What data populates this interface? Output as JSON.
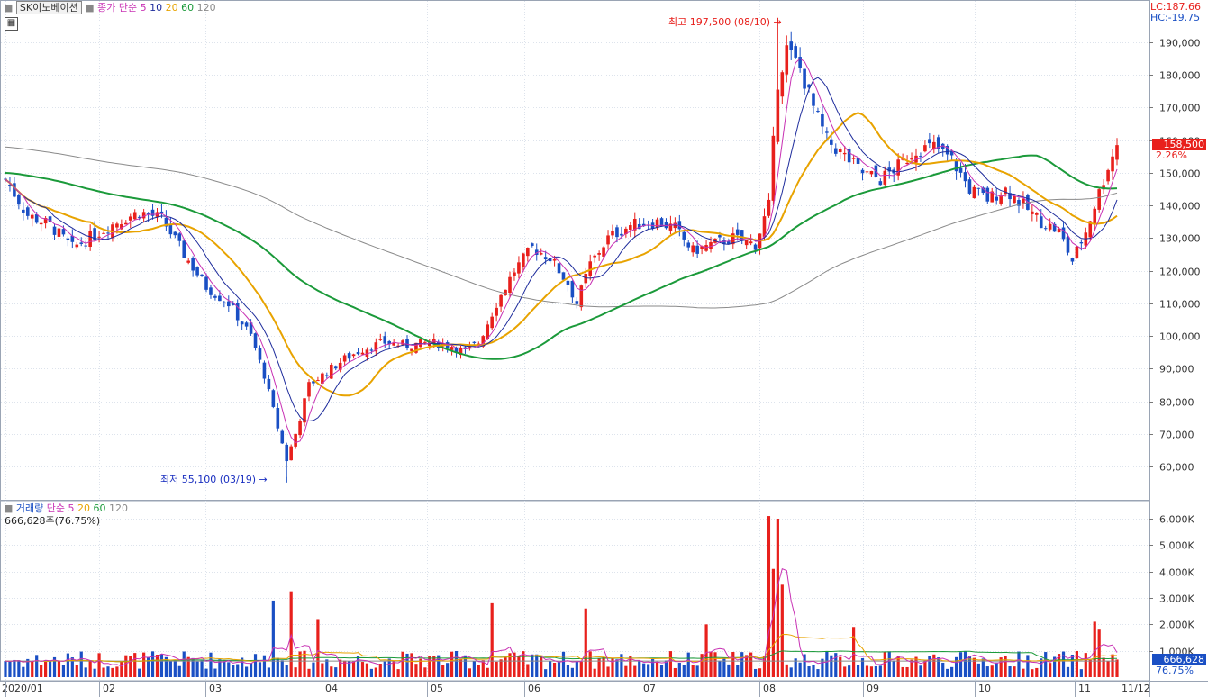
{
  "header": {
    "stock_name": "SK이노베이션",
    "price_ma_label": "종가 단순",
    "ma_periods": [
      "5",
      "10",
      "20",
      "60",
      "120"
    ],
    "lc_label": "LC:187.66",
    "hc_label": "HC:-19.75",
    "grid_icon": "table-grid-icon"
  },
  "volume_panel": {
    "title": "거래량",
    "ma_label": "단순",
    "ma_periods": [
      "5",
      "20",
      "60",
      "120"
    ],
    "current_volume": "666,628주(76.75%)",
    "last_volume_tag": "666,628",
    "last_volume_pct": "76.75%"
  },
  "price_axis_ticks": [
    "190,000",
    "180,000",
    "170,000",
    "160,000",
    "150,000",
    "140,000",
    "130,000",
    "120,000",
    "110,000",
    "100,000",
    "90,000",
    "80,000",
    "70,000",
    "60,000"
  ],
  "volume_axis_ticks": [
    "6,000K",
    "5,000K",
    "4,000K",
    "3,000K",
    "2,000K",
    "1,000K"
  ],
  "date_axis_ticks": [
    "2020/01",
    "02",
    "03",
    "04",
    "05",
    "06",
    "07",
    "08",
    "09",
    "10",
    "11",
    "11/12"
  ],
  "annotations": {
    "high": "최고 197,500 (08/10)",
    "low": "최저 55,100 (03/19)",
    "last_price": "158,500",
    "last_change": "2.26%"
  },
  "colors": {
    "up": "#e8201c",
    "down": "#1a4fc4",
    "ma5": "#c832b4",
    "ma10": "#1e2c9c",
    "ma20": "#e8a300",
    "ma60": "#1b9a3a",
    "ma120": "#8a8a8a",
    "grid": "#dde3ec",
    "axis_text": "#333333"
  },
  "chart_data": {
    "type": "candlestick",
    "ylim_price": [
      52000,
      200000
    ],
    "ylim_volume_k": [
      0,
      6300
    ],
    "x_months": [
      "2020/01",
      "02",
      "03",
      "04",
      "05",
      "06",
      "07",
      "08",
      "09",
      "10",
      "11"
    ],
    "key_points": [
      {
        "date": "03/19",
        "low": 55100
      },
      {
        "date": "08/10",
        "high": 197500
      },
      {
        "date": "11/12",
        "close": 158500,
        "change_pct": 2.26,
        "volume": 666628
      }
    ],
    "price_control_points": [
      [
        0,
        148000
      ],
      [
        5,
        137000
      ],
      [
        10,
        134000
      ],
      [
        15,
        127000
      ],
      [
        20,
        131000
      ],
      [
        25,
        135000
      ],
      [
        30,
        138000
      ],
      [
        35,
        136000
      ],
      [
        40,
        125000
      ],
      [
        45,
        115000
      ],
      [
        50,
        110000
      ],
      [
        55,
        100000
      ],
      [
        58,
        88000
      ],
      [
        61,
        72000
      ],
      [
        63,
        62000
      ],
      [
        65,
        70000
      ],
      [
        68,
        85000
      ],
      [
        72,
        89000
      ],
      [
        76,
        93000
      ],
      [
        80,
        96000
      ],
      [
        85,
        98000
      ],
      [
        90,
        97000
      ],
      [
        95,
        98000
      ],
      [
        100,
        97000
      ],
      [
        103,
        95000
      ],
      [
        106,
        98000
      ],
      [
        110,
        110000
      ],
      [
        114,
        120000
      ],
      [
        118,
        127000
      ],
      [
        122,
        124000
      ],
      [
        126,
        116000
      ],
      [
        128,
        110000
      ],
      [
        131,
        122000
      ],
      [
        135,
        130000
      ],
      [
        140,
        134000
      ],
      [
        146,
        135000
      ],
      [
        150,
        133000
      ],
      [
        154,
        126000
      ],
      [
        158,
        128000
      ],
      [
        163,
        130000
      ],
      [
        168,
        128000
      ],
      [
        171,
        140000
      ],
      [
        173,
        178000
      ],
      [
        175,
        188000
      ],
      [
        178,
        182000
      ],
      [
        181,
        170000
      ],
      [
        184,
        160000
      ],
      [
        188,
        155000
      ],
      [
        192,
        150000
      ],
      [
        196,
        148000
      ],
      [
        200,
        152000
      ],
      [
        204,
        157000
      ],
      [
        208,
        158000
      ],
      [
        212,
        154000
      ],
      [
        216,
        145000
      ],
      [
        220,
        142000
      ],
      [
        224,
        145000
      ],
      [
        228,
        140000
      ],
      [
        232,
        135000
      ],
      [
        236,
        132000
      ],
      [
        239,
        123000
      ],
      [
        242,
        132000
      ],
      [
        245,
        144000
      ],
      [
        247,
        152000
      ],
      [
        249,
        158500
      ]
    ],
    "volume_spikes_k": [
      {
        "i": 64,
        "v": 3250
      },
      {
        "i": 60,
        "v": 2900
      },
      {
        "i": 70,
        "v": 2200
      },
      {
        "i": 109,
        "v": 2800
      },
      {
        "i": 130,
        "v": 2600
      },
      {
        "i": 157,
        "v": 2000
      },
      {
        "i": 171,
        "v": 6100
      },
      {
        "i": 172,
        "v": 4100
      },
      {
        "i": 173,
        "v": 6000
      },
      {
        "i": 174,
        "v": 3500
      },
      {
        "i": 190,
        "v": 1900
      },
      {
        "i": 244,
        "v": 2100
      },
      {
        "i": 245,
        "v": 1800
      }
    ]
  }
}
